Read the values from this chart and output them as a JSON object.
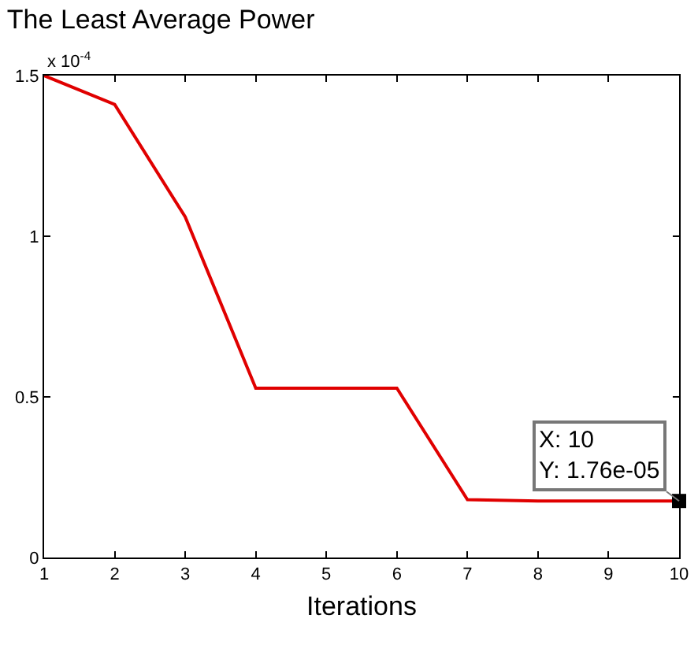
{
  "chart_data": {
    "type": "line",
    "title": "The Least Average Power",
    "xlabel": "Iterations",
    "x": [
      1,
      2,
      3,
      4,
      5,
      6,
      7,
      8,
      9,
      10
    ],
    "series": [
      {
        "color": "#e00000",
        "values": [
          1.5,
          1.41,
          1.06,
          0.527,
          0.527,
          0.527,
          0.18,
          0.176,
          0.176,
          0.176
        ]
      },
      {
        "type": "scatter",
        "color": "#000000",
        "x": [
          10
        ],
        "values": [
          0.176
        ],
        "marker": "square"
      }
    ],
    "xlim": [
      1,
      10
    ],
    "xticks": [
      1,
      2,
      3,
      4,
      5,
      6,
      7,
      8,
      9,
      10
    ],
    "ylim": [
      0,
      1.5
    ],
    "yticks": [
      0,
      0.5,
      1,
      1.5
    ],
    "grid": false,
    "marker": "none",
    "line_style": "solid",
    "annotations": [
      "x 10$^{-4}$",
      {
        "text": "X: 10\nY: 1.76e-05",
        "x": 10,
        "y": 0.176
      }
    ]
  }
}
